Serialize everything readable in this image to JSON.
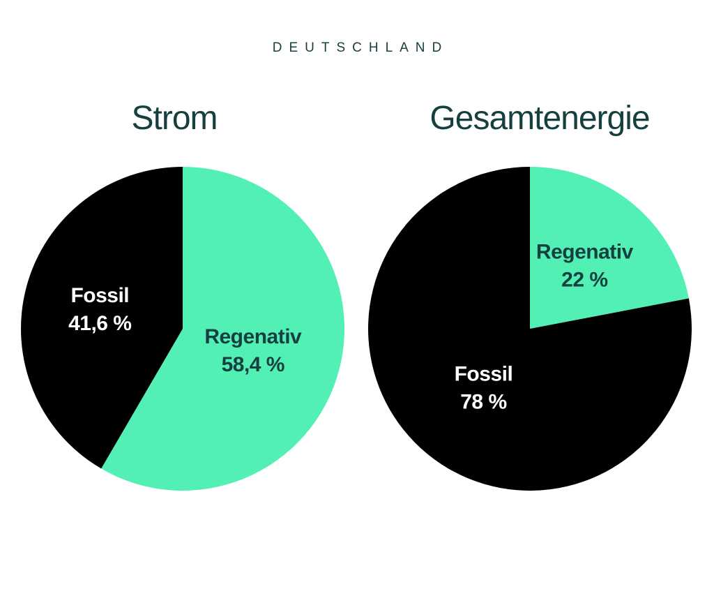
{
  "page": {
    "title": "DEUTSCHLAND"
  },
  "colors": {
    "background": "#ffffff",
    "heading": "#15403f",
    "regenerative": "#52f0b4",
    "fossil": "#000000",
    "label_on_green": "#15403f",
    "label_on_black": "#ffffff"
  },
  "chart_data": [
    {
      "type": "pie",
      "title": "Strom",
      "slices": [
        {
          "name": "Regenativ",
          "value": 58.4,
          "label": "58,4 %",
          "color": "#52f0b4"
        },
        {
          "name": "Fossil",
          "value": 41.6,
          "label": "41,6 %",
          "color": "#000000"
        }
      ],
      "start": "top",
      "direction": "clockwise"
    },
    {
      "type": "pie",
      "title": "Gesamtenergie",
      "slices": [
        {
          "name": "Regenativ",
          "value": 22,
          "label": "22 %",
          "color": "#52f0b4"
        },
        {
          "name": "Fossil",
          "value": 78,
          "label": "78 %",
          "color": "#000000"
        }
      ],
      "start": "top",
      "direction": "clockwise"
    }
  ]
}
